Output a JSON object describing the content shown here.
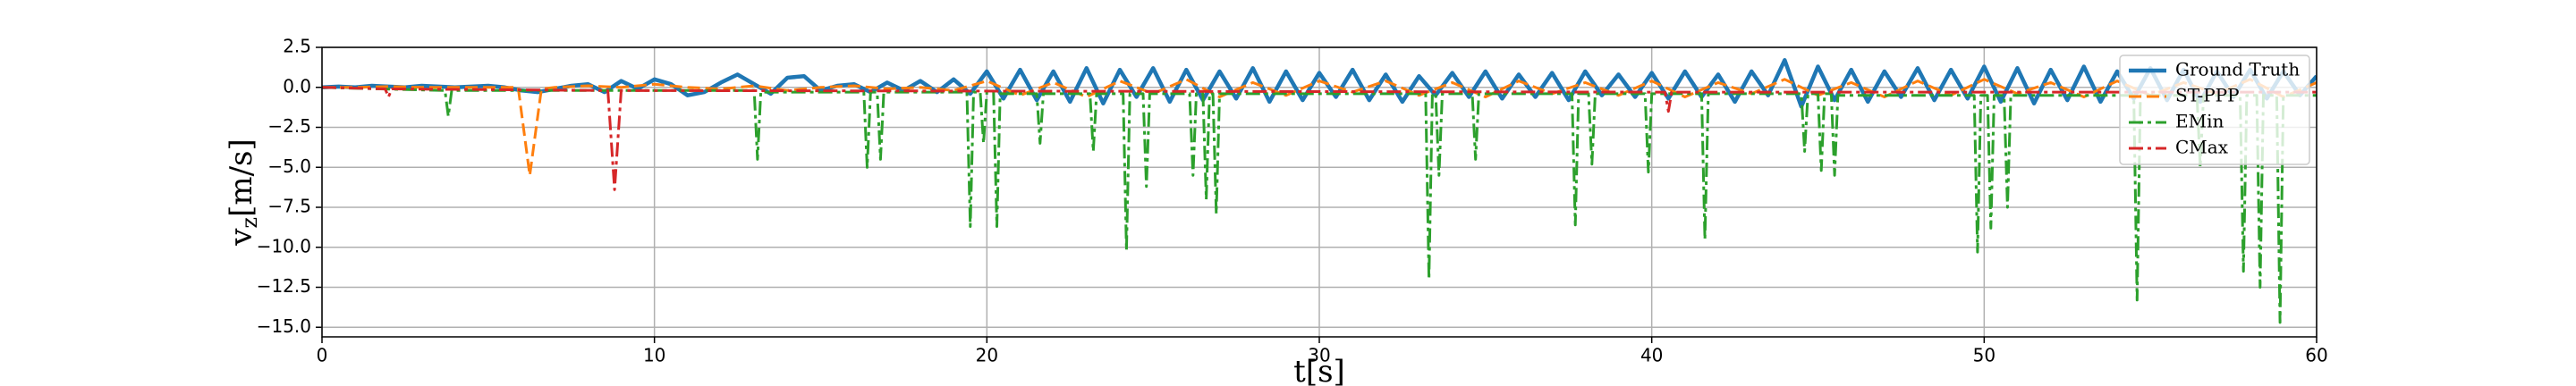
{
  "chart_data": {
    "type": "line",
    "x_label": "t[s]",
    "y_label": {
      "symbol": "v",
      "subscript": "z",
      "unit": "[m/s]"
    },
    "xlim": [
      0,
      60
    ],
    "xticks": [
      0,
      10,
      20,
      30,
      40,
      50,
      60
    ],
    "ylim": [
      -15.6,
      2.5
    ],
    "yticks": [
      2.5,
      {
        "value": 0,
        "label": "0.0"
      },
      {
        "value": -2.5,
        "label": "−2.5"
      },
      {
        "value": -5,
        "label": "−5.0"
      },
      {
        "value": -7.5,
        "label": "−7.5"
      },
      {
        "value": -10,
        "label": "−10.0"
      },
      {
        "value": -12.5,
        "label": "−12.5"
      },
      {
        "value": -15,
        "label": "−15.0"
      }
    ],
    "grid": true,
    "legend": "upper right",
    "series": [
      {
        "name": "Ground Truth",
        "color": "#1f77b4",
        "style": "solid",
        "x": [
          0,
          0.5,
          1,
          1.5,
          2,
          2.5,
          3,
          3.5,
          4,
          4.5,
          5,
          5.5,
          6,
          6.5,
          7,
          7.5,
          8,
          8.5,
          9,
          9.5,
          10,
          10.5,
          11,
          11.5,
          12,
          12.5,
          13,
          13.5,
          14,
          14.5,
          15,
          15.5,
          16,
          16.5,
          17,
          17.5,
          18,
          18.5,
          19,
          19.5,
          20,
          20.5,
          21,
          21.5,
          22,
          22.5,
          23,
          23.5,
          24,
          24.5,
          25,
          25.5,
          26,
          26.5,
          27,
          27.5,
          28,
          28.5,
          29,
          29.5,
          30,
          30.5,
          31,
          31.5,
          32,
          32.5,
          33,
          33.5,
          34,
          34.5,
          35,
          35.5,
          36,
          36.5,
          37,
          37.5,
          38,
          38.5,
          39,
          39.5,
          40,
          40.5,
          41,
          41.5,
          42,
          42.5,
          43,
          43.5,
          44,
          44.5,
          45,
          45.5,
          46,
          46.5,
          47,
          47.5,
          48,
          48.5,
          49,
          49.5,
          50,
          50.5,
          51,
          51.5,
          52,
          52.5,
          53,
          53.5,
          54,
          54.5,
          55,
          55.5,
          56,
          56.5,
          57,
          57.5,
          58,
          58.5,
          59,
          59.5,
          60
        ],
        "values": [
          0,
          0.05,
          0,
          0.1,
          0.05,
          0,
          0.1,
          0.05,
          0,
          0.05,
          0.1,
          0,
          -0.2,
          -0.3,
          -0.1,
          0.1,
          0.2,
          -0.3,
          0.4,
          -0.1,
          0.5,
          0.2,
          -0.5,
          -0.3,
          0.3,
          0.8,
          0.2,
          -0.4,
          0.6,
          0.7,
          -0.2,
          0.1,
          0.2,
          -0.3,
          0.3,
          -0.2,
          0.4,
          -0.3,
          0.5,
          -0.4,
          1.0,
          -0.7,
          1.1,
          -0.8,
          1.0,
          -0.9,
          1.2,
          -1.0,
          1.1,
          -0.6,
          1.2,
          -0.9,
          1.1,
          -0.8,
          1.0,
          -0.7,
          1.2,
          -0.9,
          1.0,
          -0.8,
          0.9,
          -0.6,
          1.1,
          -0.8,
          0.8,
          -0.9,
          0.7,
          -0.5,
          0.9,
          -0.6,
          1.0,
          -0.7,
          0.8,
          -0.6,
          0.9,
          -0.8,
          1.0,
          -0.5,
          0.8,
          -0.6,
          0.9,
          -0.7,
          1.0,
          -0.6,
          0.8,
          -0.9,
          1.0,
          -0.5,
          1.7,
          -1.2,
          1.3,
          -0.8,
          1.1,
          -0.9,
          1.0,
          -0.6,
          1.2,
          -0.8,
          1.1,
          -0.7,
          1.3,
          -0.9,
          1.2,
          -1.0,
          1.1,
          -0.8,
          1.3,
          -0.9,
          1.0,
          -0.7,
          1.2,
          -0.8,
          1.1,
          -0.9,
          1.0,
          -0.6,
          1.1,
          -0.7,
          1.0,
          -0.5,
          0.7
        ]
      },
      {
        "name": "ST-PPP",
        "color": "#ff7f0e",
        "style": "dashed",
        "x": [
          0,
          1,
          2,
          3,
          4,
          5,
          5.9,
          6.25,
          6.6,
          7,
          8,
          9,
          10,
          11,
          12,
          13,
          14,
          15,
          16,
          17,
          18,
          19,
          20,
          21,
          22,
          23,
          24,
          25,
          26,
          27,
          28,
          29,
          30,
          31,
          32,
          33,
          34,
          35,
          36,
          37,
          38,
          39,
          40,
          41,
          42,
          43,
          44,
          45,
          46,
          47,
          48,
          49,
          50,
          51,
          52,
          53,
          54,
          55,
          56,
          57,
          58,
          59,
          60
        ],
        "values": [
          0,
          0,
          0.05,
          0,
          0,
          0,
          0,
          -5.5,
          -0.1,
          0,
          0.1,
          0,
          0.2,
          0,
          -0.1,
          0.1,
          -0.2,
          0,
          0.1,
          -0.1,
          0,
          -0.2,
          0.4,
          -0.5,
          0.3,
          -0.6,
          0.4,
          -0.4,
          0.5,
          -0.6,
          0.3,
          -0.5,
          0.4,
          -0.3,
          0.4,
          -0.5,
          0.3,
          -0.6,
          0.4,
          -0.4,
          0.3,
          -0.5,
          0.4,
          -0.6,
          0.3,
          -0.4,
          0.5,
          -0.5,
          0.3,
          -0.6,
          0.4,
          -0.5,
          0.5,
          -0.4,
          0.3,
          -0.6,
          0.4,
          -0.5,
          0.3,
          -0.4,
          0.5,
          -0.6,
          0.3
        ]
      },
      {
        "name": "EMin",
        "color": "#2ca02c",
        "style": "dashdot",
        "x": [
          0,
          3.7,
          3.8,
          3.9,
          13,
          13.1,
          13.2,
          16.3,
          16.4,
          16.5,
          16.7,
          16.8,
          16.9,
          19.4,
          19.5,
          19.6,
          19.8,
          19.9,
          20,
          20.2,
          20.3,
          20.4,
          21.5,
          21.6,
          21.7,
          23.1,
          23.2,
          23.3,
          24.1,
          24.2,
          24.3,
          24.7,
          24.8,
          24.9,
          26.1,
          26.2,
          26.3,
          26.5,
          26.6,
          26.7,
          26.8,
          26.9,
          27,
          33.2,
          33.3,
          33.4,
          33.5,
          33.6,
          33.7,
          34.6,
          34.7,
          34.8,
          37.6,
          37.7,
          37.8,
          38.1,
          38.2,
          38.3,
          39.8,
          39.9,
          40,
          41.5,
          41.6,
          41.7,
          44.5,
          44.6,
          44.7,
          45,
          45.1,
          45.2,
          45.4,
          45.5,
          45.6,
          49.7,
          49.8,
          49.9,
          50.1,
          50.2,
          50.3,
          50.6,
          50.7,
          50.8,
          54.5,
          54.6,
          54.7,
          56.4,
          56.5,
          56.6,
          57.7,
          57.8,
          57.9,
          58.2,
          58.3,
          58.4,
          58.8,
          58.9,
          59,
          60
        ],
        "values": [
          0,
          -0.2,
          -1.8,
          -0.2,
          -0.2,
          -4.5,
          -0.3,
          -0.3,
          -5.0,
          -0.3,
          -0.3,
          -4.5,
          -0.3,
          -0.3,
          -8.7,
          -0.3,
          -0.3,
          -3.5,
          -0.3,
          -0.3,
          -8.7,
          -0.4,
          -0.4,
          -3.5,
          -0.4,
          -0.4,
          -4.0,
          -0.4,
          -0.4,
          -10.2,
          -0.4,
          -0.4,
          -6.2,
          -0.4,
          -0.4,
          -5.5,
          -0.4,
          -0.4,
          -7.0,
          -0.4,
          -0.4,
          -7.9,
          -0.4,
          -0.4,
          -12.0,
          -0.4,
          -0.4,
          -5.5,
          -0.4,
          -0.4,
          -4.5,
          -0.4,
          -0.4,
          -8.6,
          -0.4,
          -0.4,
          -4.8,
          -0.4,
          -0.4,
          -5.3,
          -0.4,
          -0.4,
          -9.5,
          -0.4,
          -0.4,
          -4.0,
          -0.4,
          -0.4,
          -5.2,
          -0.4,
          -0.4,
          -5.5,
          -0.5,
          -0.5,
          -10.3,
          -0.5,
          -0.5,
          -8.8,
          -0.5,
          -0.5,
          -7.5,
          -0.5,
          -0.5,
          -13.3,
          -0.5,
          -0.5,
          -5.0,
          -0.5,
          -0.5,
          -11.5,
          -0.5,
          -0.5,
          -12.5,
          -0.5,
          -0.5,
          -14.7,
          -0.5,
          -0.5
        ]
      },
      {
        "name": "CMax",
        "color": "#d62728",
        "style": "dashdot",
        "x": [
          0,
          1.9,
          2.0,
          2.1,
          8.6,
          8.8,
          9.0,
          40.4,
          40.5,
          40.6,
          60
        ],
        "values": [
          0,
          -0.1,
          -0.6,
          -0.1,
          -0.2,
          -6.4,
          -0.2,
          -0.3,
          -1.5,
          -0.3,
          -0.3
        ]
      }
    ]
  }
}
